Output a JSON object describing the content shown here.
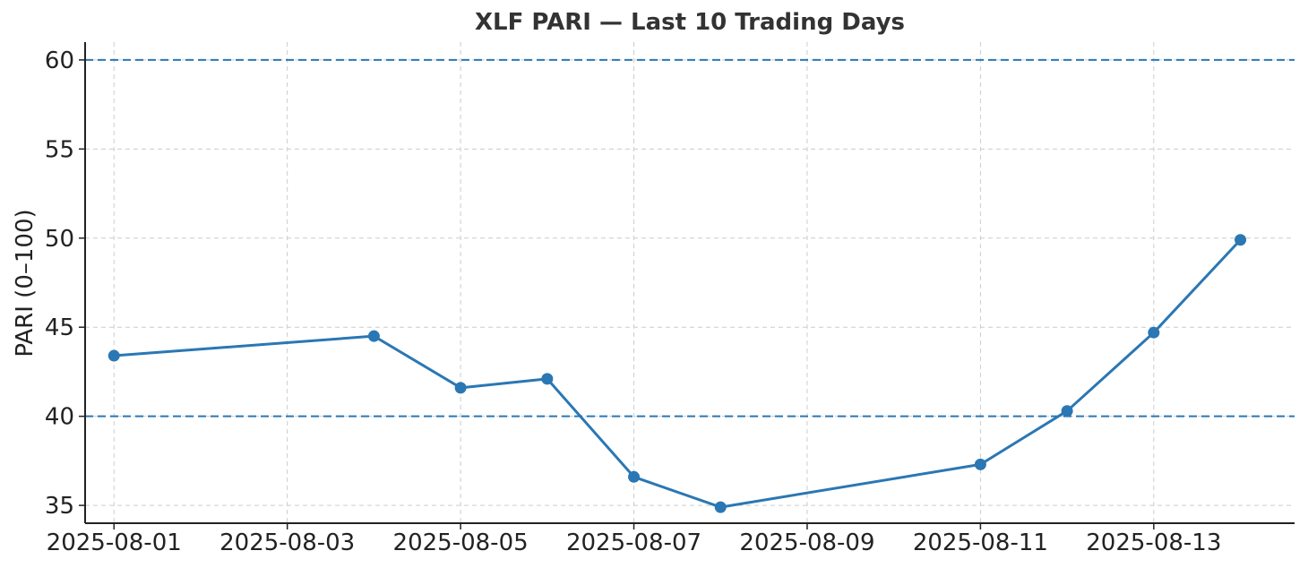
{
  "chart_data": {
    "type": "line",
    "title": "XLF PARI — Last 10 Trading Days",
    "xlabel": "",
    "ylabel": "PARI (0–100)",
    "ylim": [
      34,
      61
    ],
    "xlim": [
      "2025-07-31 16:00",
      "2025-08-14 15:00"
    ],
    "yticks": [
      35,
      40,
      45,
      50,
      55,
      60
    ],
    "xticks": [
      "2025-08-01",
      "2025-08-03",
      "2025-08-05",
      "2025-08-07",
      "2025-08-09",
      "2025-08-11",
      "2025-08-13"
    ],
    "grid": true,
    "series": [
      {
        "color": "#2a77b4",
        "points": [
          {
            "x": "2025-08-01",
            "y": 43.4
          },
          {
            "x": "2025-08-04",
            "y": 44.5
          },
          {
            "x": "2025-08-05",
            "y": 41.6
          },
          {
            "x": "2025-08-06",
            "y": 42.1
          },
          {
            "x": "2025-08-07",
            "y": 36.6
          },
          {
            "x": "2025-08-08",
            "y": 34.9
          },
          {
            "x": "2025-08-11",
            "y": 37.3
          },
          {
            "x": "2025-08-12",
            "y": 40.3
          },
          {
            "x": "2025-08-13",
            "y": 44.7
          },
          {
            "x": "2025-08-14",
            "y": 49.9
          }
        ]
      }
    ],
    "reference_lines": [
      {
        "y": 60,
        "color": "#2a77b4",
        "style": "dashed"
      },
      {
        "y": 40,
        "color": "#2a77b4",
        "style": "dashed"
      }
    ]
  }
}
